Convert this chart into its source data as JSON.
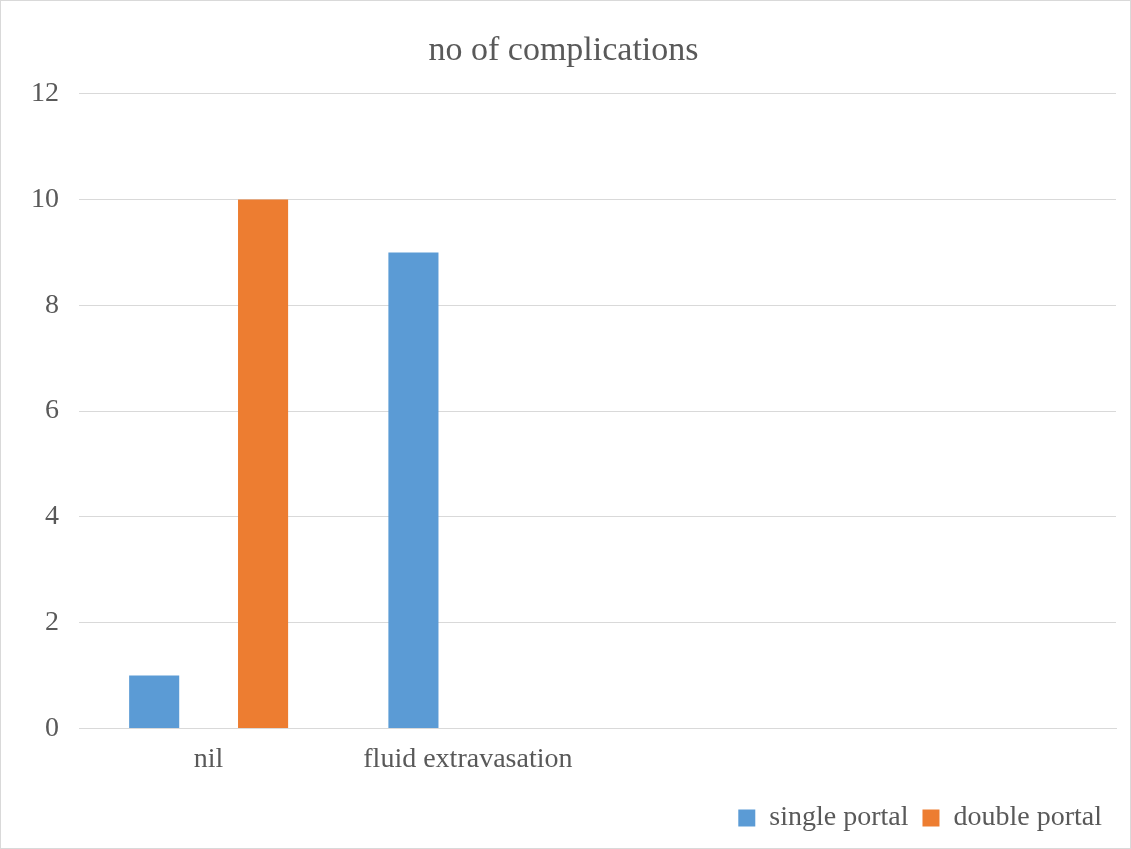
{
  "chart_data": {
    "type": "bar",
    "title": "no of complications",
    "categories": [
      "nil",
      "fluid extravasation",
      null,
      null
    ],
    "series": [
      {
        "name": "single portal",
        "color": "#5b9bd5",
        "values": [
          1,
          9,
          null,
          null
        ]
      },
      {
        "name": "double portal",
        "color": "#ed7d31",
        "values": [
          10,
          0,
          null,
          null
        ]
      }
    ],
    "ylim": [
      0,
      12
    ],
    "yticks": [
      0,
      2,
      4,
      6,
      8,
      10,
      12
    ],
    "grid": "y",
    "legend": "bottom right"
  }
}
